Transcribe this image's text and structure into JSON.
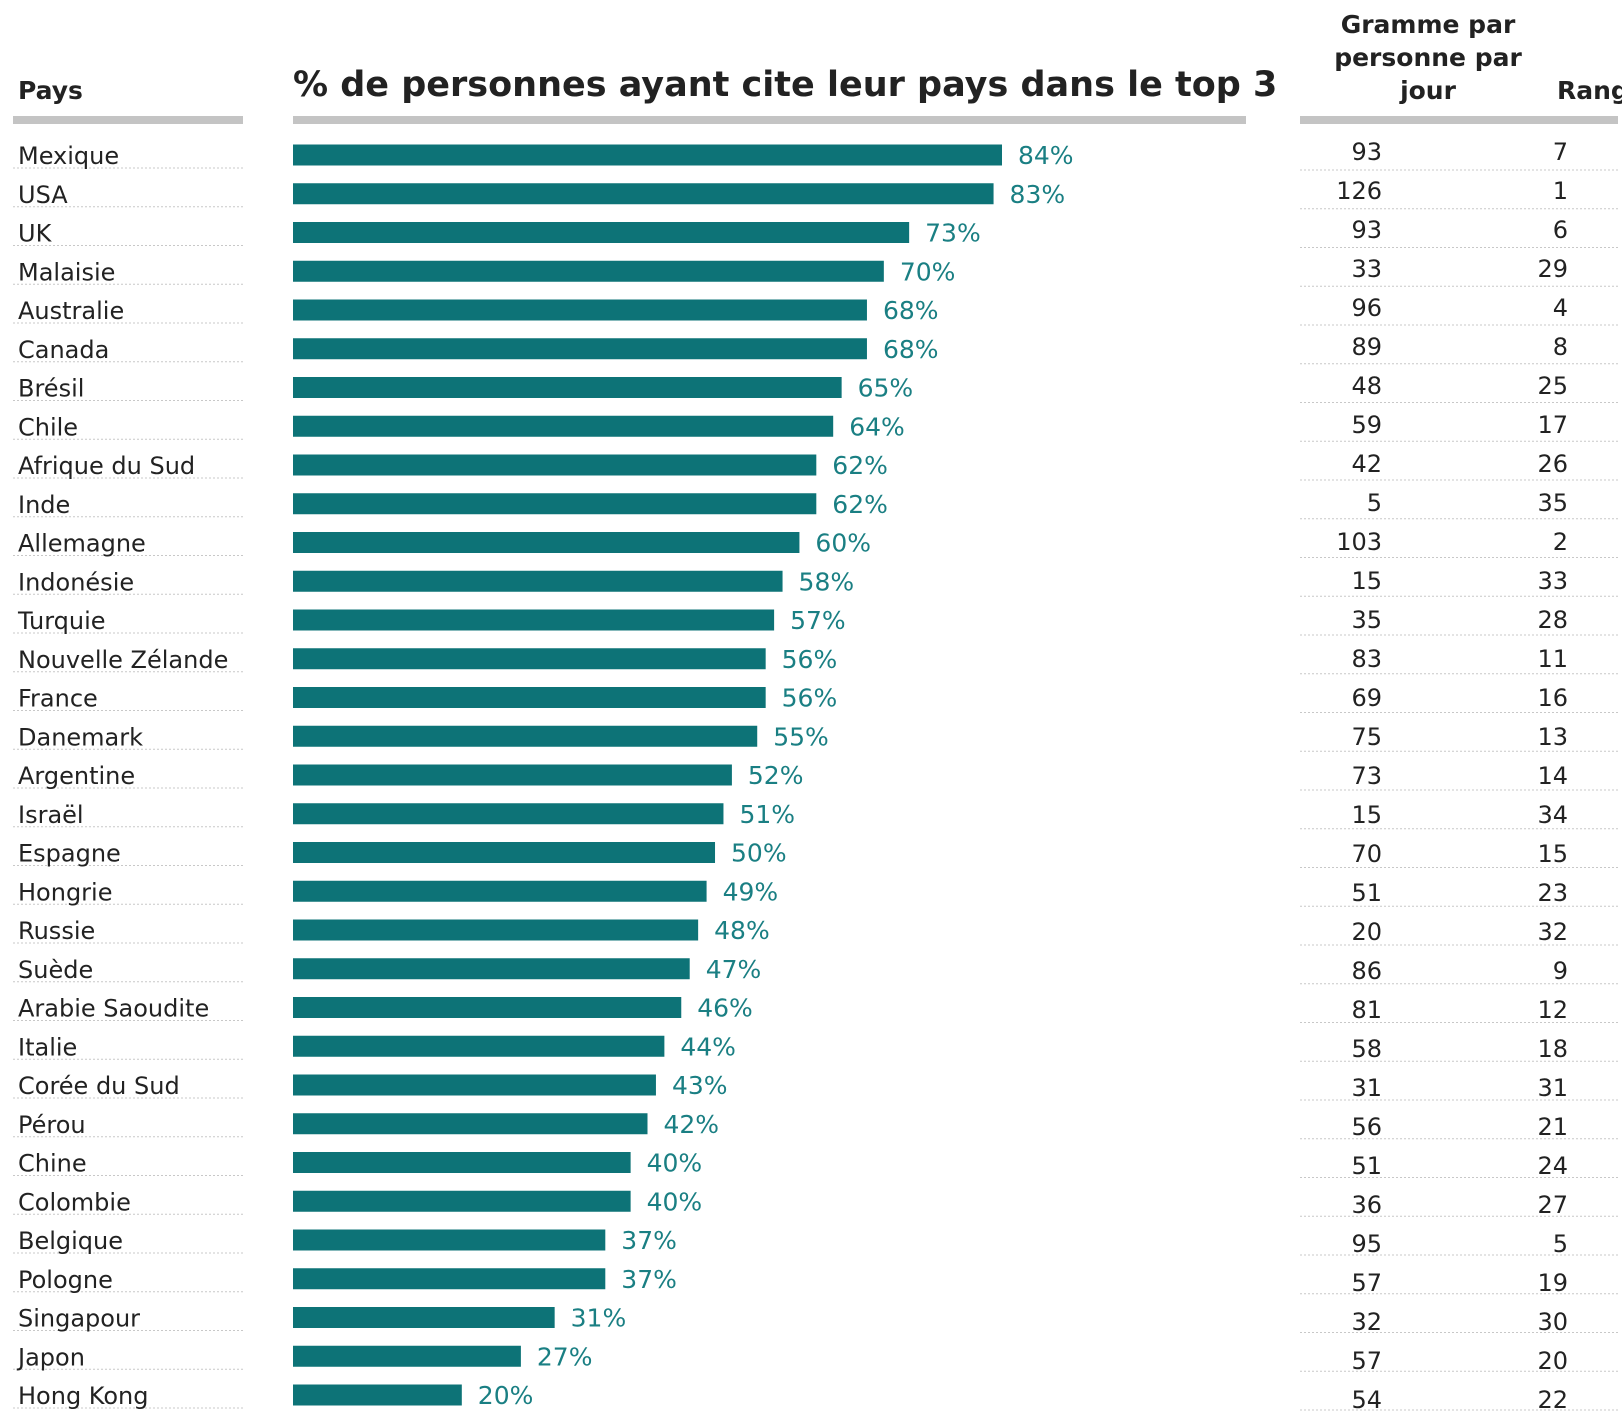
{
  "headers": {
    "country": "Pays",
    "title": "% de personnes ayant cite leur pays dans le top 3",
    "grams": "Gramme par personne par jour",
    "rank": "Rang"
  },
  "colors": {
    "bar": "#0d7377",
    "bar_label": "#1a7f83",
    "rule": "#c4c4c4",
    "dotted": "#c8c8c8"
  },
  "chart_data": {
    "type": "bar",
    "orientation": "horizontal",
    "title": "% de personnes ayant cite leur pays dans le top 3",
    "value_suffix": "%",
    "xlim": [
      0,
      100
    ],
    "categories": [
      "Mexique",
      "USA",
      "UK",
      "Malaisie",
      "Australie",
      "Canada",
      "Brésil",
      "Chile",
      "Afrique du Sud",
      "Inde",
      "Allemagne",
      "Indonésie",
      "Turquie",
      "Nouvelle Zélande",
      "France",
      "Danemark",
      "Argentine",
      "Israël",
      "Espagne",
      "Hongrie",
      "Russie",
      "Suède",
      "Arabie Saoudite",
      "Italie",
      "Corée du Sud",
      "Pérou",
      "Chine",
      "Colombie",
      "Belgique",
      "Pologne",
      "Singapour",
      "Japon",
      "Hong Kong"
    ],
    "values": [
      84,
      83,
      73,
      70,
      68,
      68,
      65,
      64,
      62,
      62,
      60,
      58,
      57,
      56,
      56,
      55,
      52,
      51,
      50,
      49,
      48,
      47,
      46,
      44,
      43,
      42,
      40,
      40,
      37,
      37,
      31,
      27,
      20
    ],
    "grams": [
      93,
      126,
      93,
      33,
      96,
      89,
      48,
      59,
      42,
      5,
      103,
      15,
      35,
      83,
      69,
      75,
      73,
      15,
      70,
      51,
      20,
      86,
      81,
      58,
      31,
      56,
      51,
      36,
      95,
      57,
      32,
      57,
      54
    ],
    "rank": [
      7,
      1,
      6,
      29,
      4,
      8,
      25,
      17,
      26,
      35,
      2,
      33,
      28,
      11,
      16,
      13,
      14,
      34,
      15,
      23,
      32,
      9,
      12,
      18,
      31,
      21,
      24,
      27,
      5,
      19,
      30,
      20,
      22
    ]
  }
}
